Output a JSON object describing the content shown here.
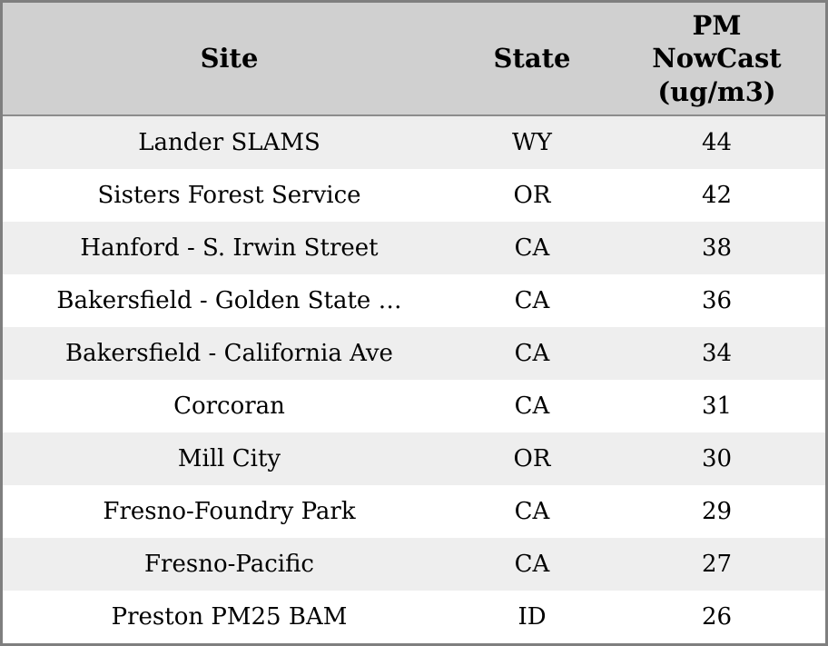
{
  "chart_data": {
    "type": "table",
    "columns": [
      "Site",
      "State",
      "PM NowCast (ug/m3)"
    ],
    "rows": [
      [
        "Lander SLAMS",
        "WY",
        44
      ],
      [
        "Sisters Forest Service",
        "OR",
        42
      ],
      [
        "Hanford - S. Irwin Street",
        "CA",
        38
      ],
      [
        "Bakersfield - Golden State …",
        "CA",
        36
      ],
      [
        "Bakersfield - California Ave",
        "CA",
        34
      ],
      [
        "Corcoran",
        "CA",
        31
      ],
      [
        "Mill City",
        "OR",
        30
      ],
      [
        "Fresno-Foundry Park",
        "CA",
        29
      ],
      [
        "Fresno-Pacific",
        "CA",
        27
      ],
      [
        "Preston PM25 BAM",
        "ID",
        26
      ]
    ],
    "layout": {
      "striped_rows": true,
      "header_lines_pm_column": [
        "PM",
        "NowCast",
        "(ug/m3)"
      ]
    }
  },
  "table": {
    "header": {
      "site": "Site",
      "state": "State",
      "pm": "PM\nNowCast\n(ug/m3)"
    },
    "rows": [
      {
        "site": "Lander SLAMS",
        "state": "WY",
        "pm": "44"
      },
      {
        "site": "Sisters Forest Service",
        "state": "OR",
        "pm": "42"
      },
      {
        "site": "Hanford - S. Irwin Street",
        "state": "CA",
        "pm": "38"
      },
      {
        "site": "Bakersfield - Golden State …",
        "state": "CA",
        "pm": "36"
      },
      {
        "site": "Bakersfield - California Ave",
        "state": "CA",
        "pm": "34"
      },
      {
        "site": "Corcoran",
        "state": "CA",
        "pm": "31"
      },
      {
        "site": "Mill City",
        "state": "OR",
        "pm": "30"
      },
      {
        "site": "Fresno-Foundry Park",
        "state": "CA",
        "pm": "29"
      },
      {
        "site": "Fresno-Pacific",
        "state": "CA",
        "pm": "27"
      },
      {
        "site": "Preston PM25 BAM",
        "state": "ID",
        "pm": "26"
      }
    ]
  },
  "colors": {
    "header_bg": "#d0d0d0",
    "row_stripe_bg": "#eeeeee",
    "row_bg": "#ffffff",
    "outer_border": "#7f7f7f",
    "header_divider": "#8c8c8c",
    "text": "#000000"
  }
}
